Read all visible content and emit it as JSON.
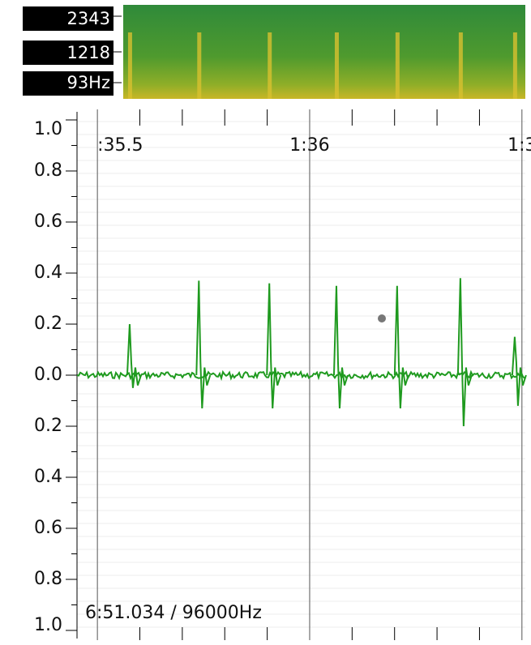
{
  "spectrogram": {
    "labels": [
      "2343",
      "1218",
      "93Hz"
    ]
  },
  "waveform": {
    "xlim": [
      95.452,
      96.508
    ],
    "ylim": [
      -1,
      1
    ],
    "xticks": [
      {
        "value": 95.5,
        "label": ":35.5"
      },
      {
        "value": 96,
        "label": "1:36"
      },
      {
        "value": 96.5,
        "label": "1:3"
      }
    ],
    "minor_xticks": [
      95.6,
      95.7,
      95.8,
      95.9,
      96.1,
      96.2,
      96.3,
      96.4
    ],
    "yticks": [
      {
        "value": 1,
        "label": "1.0"
      },
      0.8,
      0.6,
      0.4,
      0.2,
      {
        "value": 0,
        "label": "0.0"
      },
      {
        "value": -0.2,
        "label": "0.2"
      },
      {
        "value": -0.4,
        "label": "0.4"
      },
      {
        "value": -0.6,
        "label": "0.6"
      },
      {
        "value": -0.8,
        "label": "0.8"
      },
      {
        "value": -1,
        "label": "1.0"
      }
    ],
    "minor_yticks": [
      0.9,
      0.7,
      0.5,
      0.3,
      0.1,
      -0.1,
      -0.3,
      -0.5,
      -0.7,
      -0.9
    ],
    "color": "#1f9a1f",
    "spikes": [
      {
        "time": 95.576,
        "high": 0.2,
        "low": -0.05
      },
      {
        "time": 95.739,
        "high": 0.37,
        "low": -0.13
      },
      {
        "time": 95.905,
        "high": 0.36,
        "low": -0.13
      },
      {
        "time": 96.063,
        "high": 0.35,
        "low": -0.13
      },
      {
        "time": 96.206,
        "high": 0.35,
        "low": -0.13
      },
      {
        "time": 96.355,
        "high": 0.38,
        "low": -0.2
      },
      {
        "time": 96.483,
        "high": 0.15,
        "low": -0.12
      }
    ]
  },
  "status": "6:51.034 / 96000Hz"
}
